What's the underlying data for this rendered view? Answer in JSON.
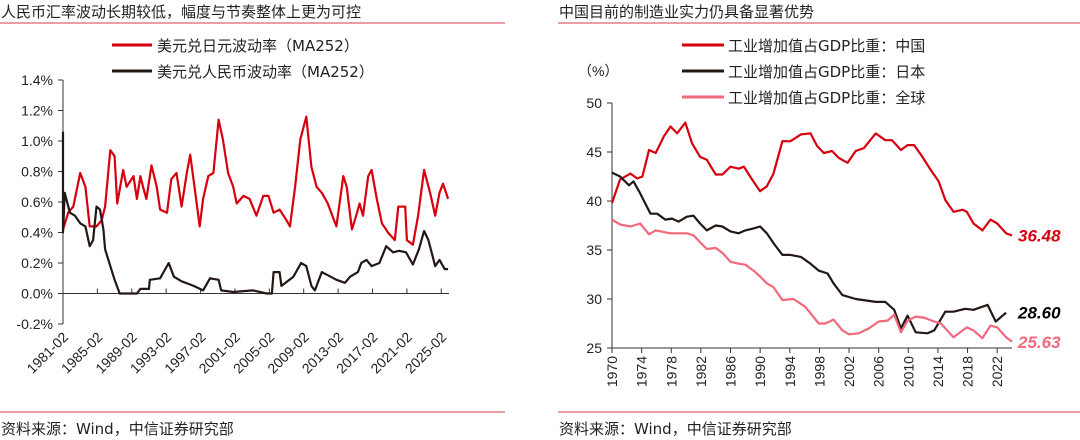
{
  "colors": {
    "red": "#d7000f",
    "dark": "#231815",
    "pink": "#f2687c",
    "rule": "#e06070"
  },
  "chart_data": [
    {
      "type": "line",
      "title": "人民币汇率波动长期较低，幅度与节奏整体上更为可控",
      "source": "资料来源：Wind，中信证券研究部",
      "ylim": [
        -0.2,
        1.4
      ],
      "y_unit": "%",
      "xlim": [
        1981.1,
        2026.0
      ],
      "y_ticks": [
        "1.4%",
        "1.2%",
        "1.0%",
        "0.8%",
        "0.6%",
        "0.4%",
        "0.2%",
        "0.0%",
        "-0.2%"
      ],
      "y_tick_values": [
        1.4,
        1.2,
        1.0,
        0.8,
        0.6,
        0.4,
        0.2,
        0.0,
        -0.2
      ],
      "x_ticks": [
        "1981-02",
        "1985-02",
        "1989-02",
        "1993-02",
        "1997-02",
        "2001-02",
        "2005-02",
        "2009-02",
        "2013-02",
        "2017-02",
        "2021-02",
        "2025-02"
      ],
      "x_tick_values": [
        1981.1,
        1985.1,
        1989.1,
        1993.1,
        1997.1,
        2001.1,
        2005.1,
        2009.1,
        2013.1,
        2017.1,
        2021.1,
        2025.1
      ],
      "legend": "top",
      "series": [
        {
          "name": "美元兑日元波动率（MA252）",
          "color": "#d7000f",
          "x": [
            1981.1,
            1981.7,
            1982.3,
            1983.1,
            1983.7,
            1984.2,
            1985.0,
            1985.6,
            1986.0,
            1986.6,
            1987.1,
            1987.4,
            1988.1,
            1988.5,
            1989.3,
            1989.7,
            1990.1,
            1990.4,
            1990.8,
            1991.4,
            1992.0,
            1992.4,
            1993.2,
            1993.7,
            1994.3,
            1994.9,
            1995.5,
            1995.9,
            1996.4,
            1997.0,
            1997.4,
            1998.0,
            1998.6,
            1999.2,
            1999.7,
            2000.3,
            2000.9,
            2001.3,
            2002.1,
            2002.8,
            2003.6,
            2004.4,
            2005.0,
            2005.6,
            2006.3,
            2007.1,
            2007.5,
            2008.1,
            2008.7,
            2009.4,
            2010.0,
            2010.6,
            2011.2,
            2011.9,
            2012.3,
            2012.9,
            2013.7,
            2014.1,
            2014.7,
            2015.2,
            2015.6,
            2016.0,
            2016.6,
            2017.0,
            2017.6,
            2018.2,
            2018.9,
            2019.7,
            2020.1,
            2020.9,
            2021.1,
            2021.8,
            2022.4,
            2023.1,
            2023.8,
            2024.4,
            2024.9,
            2025.3,
            2025.9
          ],
          "y": [
            0.42,
            0.53,
            0.57,
            0.79,
            0.7,
            0.44,
            0.44,
            0.48,
            0.57,
            0.94,
            0.9,
            0.59,
            0.81,
            0.7,
            0.77,
            0.62,
            0.77,
            0.7,
            0.62,
            0.84,
            0.7,
            0.55,
            0.53,
            0.75,
            0.79,
            0.57,
            0.79,
            0.91,
            0.7,
            0.44,
            0.62,
            0.77,
            0.79,
            1.14,
            1.01,
            0.79,
            0.7,
            0.59,
            0.64,
            0.62,
            0.51,
            0.64,
            0.64,
            0.53,
            0.55,
            0.48,
            0.44,
            0.7,
            1.01,
            1.16,
            0.83,
            0.7,
            0.66,
            0.59,
            0.53,
            0.44,
            0.77,
            0.7,
            0.42,
            0.51,
            0.59,
            0.51,
            0.77,
            0.81,
            0.62,
            0.46,
            0.4,
            0.35,
            0.57,
            0.57,
            0.35,
            0.32,
            0.51,
            0.81,
            0.66,
            0.51,
            0.66,
            0.72,
            0.62
          ]
        },
        {
          "name": "美元兑人民币波动率（MA252）",
          "color": "#231815",
          "x": [
            1981.1,
            1981.1,
            1981.3,
            1981.9,
            1982.5,
            1983.1,
            1983.7,
            1984.2,
            1984.6,
            1985.0,
            1985.4,
            1985.8,
            1986.0,
            1986.6,
            1987.1,
            1987.7,
            1989.7,
            1990.1,
            1991.1,
            1991.2,
            1992.4,
            1993.4,
            1994.0,
            1994.9,
            1996.3,
            1997.4,
            1998.2,
            1999.2,
            1999.5,
            2000.9,
            2003.2,
            2004.8,
            2005.4,
            2005.6,
            2006.3,
            2006.5,
            2007.9,
            2008.8,
            2009.4,
            2010.0,
            2010.4,
            2011.2,
            2011.9,
            2012.9,
            2013.9,
            2014.5,
            2015.4,
            2015.8,
            2016.4,
            2017.0,
            2017.9,
            2018.7,
            2019.5,
            2020.2,
            2021.0,
            2021.8,
            2022.5,
            2023.1,
            2023.6,
            2024.4,
            2024.9,
            2025.5,
            2025.9
          ],
          "y": [
            1.06,
            0.4,
            0.66,
            0.53,
            0.51,
            0.46,
            0.44,
            0.31,
            0.35,
            0.57,
            0.55,
            0.42,
            0.29,
            0.18,
            0.09,
            0.0,
            0.0,
            0.03,
            0.03,
            0.09,
            0.1,
            0.2,
            0.11,
            0.08,
            0.05,
            0.02,
            0.1,
            0.09,
            0.02,
            0.01,
            0.02,
            0.0,
            0.0,
            0.14,
            0.14,
            0.05,
            0.11,
            0.2,
            0.18,
            0.05,
            0.02,
            0.14,
            0.12,
            0.09,
            0.07,
            0.11,
            0.14,
            0.2,
            0.22,
            0.18,
            0.2,
            0.31,
            0.27,
            0.28,
            0.27,
            0.19,
            0.29,
            0.41,
            0.35,
            0.18,
            0.22,
            0.16,
            0.16
          ]
        }
      ]
    },
    {
      "type": "line",
      "title": "中国目前的制造业实力仍具备显著优势",
      "source": "资料来源：Wind，中信证券研究部",
      "ylabel": "（%）",
      "ylim": [
        25,
        50
      ],
      "xlim": [
        1970,
        2024
      ],
      "y_ticks": [
        "50",
        "45",
        "40",
        "35",
        "30",
        "25"
      ],
      "y_tick_values": [
        50,
        45,
        40,
        35,
        30,
        25
      ],
      "x_ticks": [
        "1970",
        "1974",
        "1978",
        "1982",
        "1986",
        "1990",
        "1994",
        "1998",
        "2002",
        "2006",
        "2010",
        "2014",
        "2018",
        "2022"
      ],
      "x_tick_values": [
        1970,
        1974,
        1978,
        1982,
        1986,
        1990,
        1994,
        1998,
        2002,
        2006,
        2010,
        2014,
        2018,
        2022
      ],
      "legend": "top",
      "series": [
        {
          "name": "工业增加值占GDP比重：中国",
          "color": "#d7000f",
          "end_label": "36.48",
          "x": [
            1970,
            1971.1,
            1972.5,
            1973.4,
            1974.1,
            1975,
            1975.9,
            1977,
            1977.9,
            1978.8,
            1979.9,
            1980.8,
            1981.9,
            1982.8,
            1984,
            1984.9,
            1986,
            1987.1,
            1987.8,
            1988.9,
            1990,
            1990.9,
            1991.8,
            1993,
            1994.1,
            1995.5,
            1996.8,
            1997.7,
            1998.6,
            1999.7,
            2000.6,
            2001.8,
            2002.9,
            2004,
            2005.6,
            2006.9,
            2007.8,
            2009,
            2009.9,
            2010.8,
            2011.9,
            2013,
            2014.1,
            2015,
            2016.1,
            2017.3,
            2017.9,
            2018.8,
            2020,
            2021.1,
            2022,
            2023.2,
            2024
          ],
          "y": [
            39.8,
            42.2,
            42.8,
            42.3,
            42.5,
            45.2,
            44.9,
            46.6,
            47.6,
            46.9,
            48.0,
            45.9,
            44.5,
            44.2,
            42.7,
            42.7,
            43.5,
            43.3,
            43.5,
            42.2,
            41.0,
            41.5,
            42.8,
            46.1,
            46.1,
            46.8,
            46.9,
            45.6,
            44.9,
            45.1,
            44.4,
            43.9,
            45.1,
            45.4,
            46.9,
            46.2,
            46.2,
            45.2,
            45.7,
            45.7,
            44.5,
            43.2,
            42.0,
            40.1,
            38.9,
            39.1,
            38.9,
            37.7,
            37.0,
            38.1,
            37.7,
            36.7,
            36.48
          ]
        },
        {
          "name": "工业增加值占GDP比重：日本",
          "color": "#231815",
          "end_label": "28.60",
          "x": [
            1970,
            1971.1,
            1972.3,
            1972.9,
            1973.8,
            1975.2,
            1976.1,
            1977.2,
            1978.1,
            1979,
            1980.1,
            1981,
            1981.9,
            1982.8,
            1984,
            1984.9,
            1986,
            1987.1,
            1988,
            1989.1,
            1990,
            1990.9,
            1991.8,
            1993,
            1994.1,
            1995.5,
            1996.8,
            1997.9,
            1999.1,
            1999.9,
            2001.1,
            2002.9,
            2005.6,
            2006.9,
            2008.1,
            2009,
            2009.9,
            2011,
            2012.6,
            2013.5,
            2015,
            2016.1,
            2017.7,
            2018.8,
            2020.7,
            2021.8,
            2023.2
          ],
          "y": [
            42.9,
            42.5,
            41.6,
            42.0,
            40.8,
            38.7,
            38.7,
            38.1,
            38.2,
            37.9,
            38.4,
            38.5,
            37.7,
            37.0,
            37.5,
            37.4,
            36.9,
            36.7,
            37.0,
            37.2,
            37.4,
            36.7,
            35.7,
            34.5,
            34.5,
            34.3,
            33.6,
            32.9,
            32.6,
            31.6,
            30.4,
            30.0,
            29.7,
            29.7,
            28.9,
            27.0,
            28.3,
            26.6,
            26.5,
            26.8,
            28.7,
            28.7,
            29.0,
            28.9,
            29.4,
            27.7,
            28.6
          ]
        },
        {
          "name": "工业增加值占GDP比重：全球",
          "color": "#f2687c",
          "end_label": "25.63",
          "x": [
            1970,
            1971.1,
            1972.5,
            1973.8,
            1975,
            1975.9,
            1977.9,
            1980.1,
            1981,
            1981.9,
            1982.8,
            1984,
            1984.9,
            1986,
            1987.1,
            1988,
            1989.1,
            1990,
            1990.9,
            1991.8,
            1993,
            1994.5,
            1996.1,
            1997.9,
            1998.8,
            1999.9,
            2001.1,
            2002,
            2003.3,
            2004.7,
            2006,
            2007.2,
            2008.1,
            2009,
            2009.9,
            2011,
            2012.1,
            2013.5,
            2014.4,
            2016.1,
            2017.9,
            2018.8,
            2020,
            2021.1,
            2022,
            2023.2,
            2024
          ],
          "y": [
            38.1,
            37.6,
            37.4,
            37.7,
            36.6,
            37.0,
            36.7,
            36.7,
            36.5,
            35.8,
            35.1,
            35.2,
            34.7,
            33.8,
            33.6,
            33.5,
            32.9,
            32.3,
            31.6,
            31.2,
            29.9,
            30.0,
            29.2,
            27.5,
            27.5,
            27.9,
            26.8,
            26.4,
            26.5,
            27.0,
            27.7,
            27.8,
            28.4,
            26.6,
            27.8,
            28.2,
            28.1,
            27.7,
            27.5,
            26.1,
            27.1,
            26.8,
            26.0,
            27.3,
            27.1,
            26.1,
            25.63
          ]
        }
      ]
    }
  ]
}
